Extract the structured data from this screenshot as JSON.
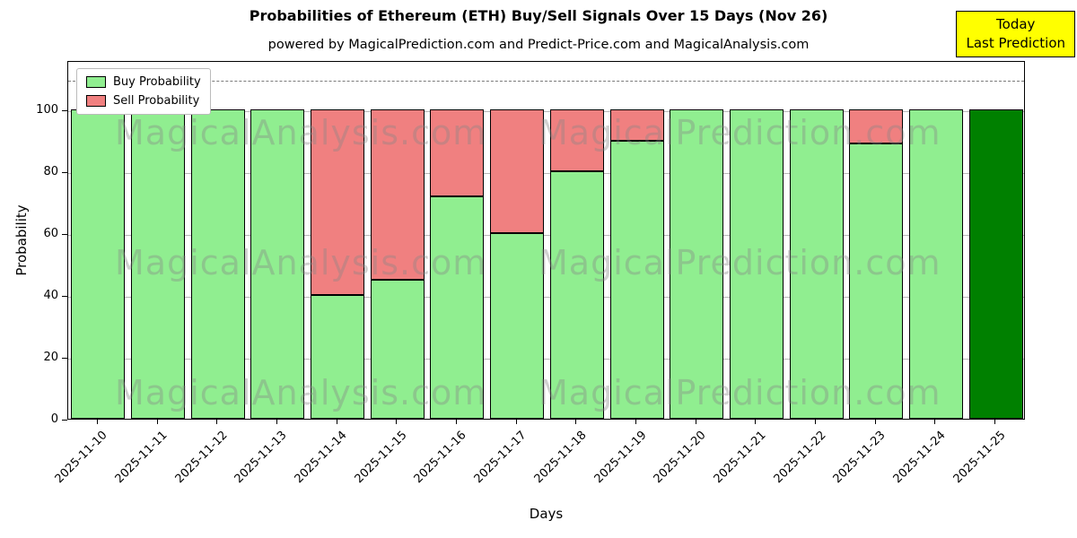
{
  "chart_data": {
    "type": "bar",
    "stacked": true,
    "title": "Probabilities of Ethereum (ETH) Buy/Sell Signals Over 15 Days (Nov 26)",
    "subtitle": "powered by MagicalPrediction.com and Predict-Price.com and MagicalAnalysis.com",
    "xlabel": "Days",
    "ylabel": "Probability",
    "ylim": [
      0,
      116
    ],
    "yticks": [
      0,
      20,
      40,
      60,
      80,
      100
    ],
    "grid": "y",
    "dashed_line_y": 110,
    "legend_position": "upper left",
    "categories": [
      "2025-11-10",
      "2025-11-11",
      "2025-11-12",
      "2025-11-13",
      "2025-11-14",
      "2025-11-15",
      "2025-11-16",
      "2025-11-17",
      "2025-11-18",
      "2025-11-19",
      "2025-11-20",
      "2025-11-21",
      "2025-11-22",
      "2025-11-23",
      "2025-11-24",
      "2025-11-25"
    ],
    "series": [
      {
        "name": "Buy Probability",
        "color": "#90EE90",
        "values": [
          100,
          100,
          100,
          100,
          40,
          45,
          72,
          60,
          80,
          90,
          100,
          100,
          100,
          89,
          100,
          100
        ]
      },
      {
        "name": "Sell Probability",
        "color": "#F08080",
        "values": [
          0,
          0,
          0,
          0,
          60,
          55,
          28,
          40,
          20,
          10,
          0,
          0,
          0,
          11,
          0,
          0
        ]
      }
    ],
    "highlight_bar": {
      "category": "2025-11-25",
      "color": "#008000"
    }
  },
  "legend": {
    "items": [
      {
        "label": "Buy Probability",
        "color": "#90EE90"
      },
      {
        "label": "Sell Probability",
        "color": "#F08080"
      }
    ]
  },
  "annotation_box": {
    "line1": "Today",
    "line2": "Last Prediction",
    "bg_color": "#FFFF00"
  },
  "watermarks": {
    "left_text": "MagicalAnalysis.com",
    "right_text": "MagicalPrediction.com"
  }
}
